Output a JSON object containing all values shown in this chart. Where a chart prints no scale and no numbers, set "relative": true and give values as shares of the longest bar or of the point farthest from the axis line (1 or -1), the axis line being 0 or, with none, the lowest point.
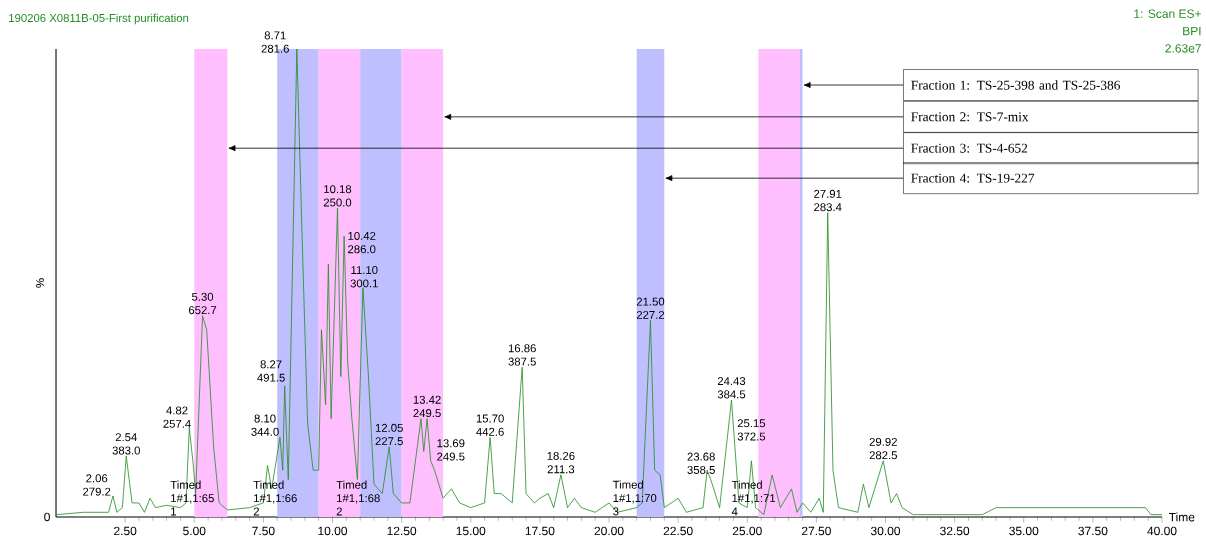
{
  "chart_data": {
    "type": "line",
    "relative": true,
    "title": "190206 X0811B-05-First purification",
    "xlabel": "Time",
    "ylabel": "%",
    "xlim": [
      0,
      40
    ],
    "xticks": [
      {
        "value": 2.5,
        "label": "2.50"
      },
      {
        "value": 5,
        "label": "5.00"
      },
      {
        "value": 7.5,
        "label": "7.50"
      },
      {
        "value": 10,
        "label": "10.00"
      },
      {
        "value": 12.5,
        "label": "12.50"
      },
      {
        "value": 15,
        "label": "15.00"
      },
      {
        "value": 17.5,
        "label": "17.50"
      },
      {
        "value": 20,
        "label": "20.00"
      },
      {
        "value": 22.5,
        "label": "22.50"
      },
      {
        "value": 25,
        "label": "25.00"
      },
      {
        "value": 27.5,
        "label": "27.50"
      },
      {
        "value": 30,
        "label": "30.00"
      },
      {
        "value": 32.5,
        "label": "32.50"
      },
      {
        "value": 35,
        "label": "35.00"
      },
      {
        "value": 37.5,
        "label": "37.50"
      },
      {
        "value": 40,
        "label": "40.00"
      }
    ],
    "x": [
      0,
      1.0,
      1.9,
      2.06,
      2.2,
      2.4,
      2.54,
      2.75,
      3.0,
      3.2,
      3.4,
      3.6,
      4.0,
      4.5,
      4.7,
      4.82,
      4.95,
      5.05,
      5.3,
      5.45,
      5.7,
      5.9,
      6.2,
      7.0,
      7.5,
      7.65,
      7.8,
      8.1,
      8.2,
      8.27,
      8.4,
      8.71,
      8.9,
      9.1,
      9.3,
      9.5,
      9.6,
      9.75,
      9.85,
      9.95,
      10.18,
      10.3,
      10.42,
      10.55,
      10.7,
      10.9,
      11.1,
      11.3,
      11.5,
      11.8,
      12.05,
      12.2,
      12.5,
      12.8,
      13.2,
      13.3,
      13.42,
      13.55,
      13.69,
      14.0,
      14.3,
      14.6,
      15.0,
      15.5,
      15.7,
      15.85,
      16.1,
      16.5,
      16.86,
      17.0,
      17.3,
      17.5,
      17.8,
      18.0,
      18.26,
      18.5,
      18.75,
      19.0,
      19.5,
      20.0,
      20.3,
      21.0,
      21.2,
      21.5,
      21.65,
      21.85,
      22.0,
      22.5,
      22.8,
      23.4,
      23.55,
      23.68,
      24.0,
      24.43,
      24.7,
      25.0,
      25.15,
      25.3,
      25.6,
      25.9,
      26.2,
      26.6,
      26.8,
      27.0,
      27.3,
      27.6,
      27.75,
      27.91,
      28.1,
      28.3,
      29.0,
      29.2,
      29.4,
      29.92,
      30.2,
      30.4,
      30.6,
      31.0,
      33.5,
      34.0,
      35.0,
      37.5,
      39.4,
      39.6,
      40.0
    ],
    "series": [
      {
        "color": "#1f8c1f",
        "values": [
          0.005,
          0.01,
          0.01,
          0.045,
          0.01,
          0.02,
          0.13,
          0.03,
          0.03,
          0.01,
          0.04,
          0.02,
          0.025,
          0.02,
          0.03,
          0.19,
          0.12,
          0.05,
          0.43,
          0.4,
          0.15,
          0.03,
          0.015,
          0.02,
          0.03,
          0.11,
          0.06,
          0.17,
          0.1,
          0.28,
          0.08,
          1.0,
          0.6,
          0.2,
          0.1,
          0.1,
          0.4,
          0.24,
          0.54,
          0.21,
          0.66,
          0.3,
          0.6,
          0.33,
          0.21,
          0.08,
          0.49,
          0.3,
          0.07,
          0.05,
          0.15,
          0.05,
          0.03,
          0.03,
          0.21,
          0.14,
          0.21,
          0.12,
          0.1,
          0.04,
          0.06,
          0.03,
          0.02,
          0.03,
          0.17,
          0.05,
          0.05,
          0.03,
          0.32,
          0.05,
          0.03,
          0.04,
          0.05,
          0.02,
          0.09,
          0.02,
          0.04,
          0.02,
          0.01,
          0.03,
          0.01,
          0.02,
          0.03,
          0.42,
          0.1,
          0.09,
          0.02,
          0.04,
          0.01,
          0.02,
          0.1,
          0.08,
          0.02,
          0.25,
          0.03,
          0.02,
          0.12,
          0.02,
          0.005,
          0.09,
          0.02,
          0.06,
          0.01,
          0.03,
          0.01,
          0.04,
          0.01,
          0.65,
          0.1,
          0.02,
          0.01,
          0.07,
          0.02,
          0.12,
          0.03,
          0.05,
          0.02,
          0.005,
          0.005,
          0.02,
          0.02,
          0.02,
          0.02,
          0.005,
          0.005
        ]
      }
    ],
    "bands": [
      {
        "axis": "x",
        "from": 5.0,
        "to": 6.2,
        "color": "#ffbfff"
      },
      {
        "axis": "x",
        "from": 8.0,
        "to": 9.5,
        "color": "#bfbfff"
      },
      {
        "axis": "x",
        "from": 9.5,
        "to": 11.0,
        "color": "#ffbfff"
      },
      {
        "axis": "x",
        "from": 11.0,
        "to": 12.5,
        "color": "#bfbfff"
      },
      {
        "axis": "x",
        "from": 12.5,
        "to": 14.0,
        "color": "#ffbfff"
      },
      {
        "axis": "x",
        "from": 21.0,
        "to": 22.0,
        "color": "#bfbfff"
      },
      {
        "axis": "x",
        "from": 25.4,
        "to": 26.9,
        "color": "#ffbfff"
      },
      {
        "axis": "x",
        "from": 26.9,
        "to": 27.0,
        "color": "#bfbfff"
      }
    ],
    "annotations": [
      "1: Scan ES+",
      "BPI",
      "2.63e7",
      "0",
      {
        "text": "2.06 279.2",
        "x": 2.06,
        "y": 0.045
      },
      {
        "text": "2.54 383.0",
        "x": 2.54,
        "y": 0.13
      },
      {
        "text": "4.82 257.4",
        "x": 4.82,
        "y": 0.19
      },
      {
        "text": "5.30 652.7",
        "x": 5.3,
        "y": 0.43
      },
      {
        "text": "8.10 344.0",
        "x": 8.1,
        "y": 0.17
      },
      {
        "text": "8.27 491.5",
        "x": 8.27,
        "y": 0.28
      },
      {
        "text": "8.71 281.6",
        "x": 8.71,
        "y": 1.0
      },
      {
        "text": "10.18 250.0",
        "x": 10.18,
        "y": 0.66
      },
      {
        "text": "10.42 286.0",
        "x": 10.42,
        "y": 0.6
      },
      {
        "text": "11.10 300.1",
        "x": 11.1,
        "y": 0.49
      },
      {
        "text": "12.05 227.5",
        "x": 12.05,
        "y": 0.15
      },
      {
        "text": "13.42 249.5",
        "x": 13.42,
        "y": 0.21
      },
      {
        "text": "13.69 249.5",
        "x": 13.69,
        "y": 0.1
      },
      {
        "text": "15.70 442.6",
        "x": 15.7,
        "y": 0.17
      },
      {
        "text": "16.86 387.5",
        "x": 16.86,
        "y": 0.32
      },
      {
        "text": "18.26 211.3",
        "x": 18.26,
        "y": 0.09
      },
      {
        "text": "21.50 227.2",
        "x": 21.5,
        "y": 0.42
      },
      {
        "text": "23.68 358.5",
        "x": 23.68,
        "y": 0.08
      },
      {
        "text": "24.43 384.5",
        "x": 24.43,
        "y": 0.25
      },
      {
        "text": "25.15 372.5",
        "x": 25.15,
        "y": 0.12
      },
      {
        "text": "27.91 283.4",
        "x": 27.91,
        "y": 0.65
      },
      {
        "text": "29.92 282.5",
        "x": 29.92,
        "y": 0.12
      },
      {
        "text": "Timed 1#1,1:65 1",
        "x": 5.0,
        "y": 0
      },
      {
        "text": "Timed 1#1,1:66 2",
        "x": 8.0,
        "y": 0
      },
      {
        "text": "Timed 1#1,1:68 2",
        "x": 11.0,
        "y": 0
      },
      {
        "text": "Timed 1#1,1:70 3",
        "x": 21.0,
        "y": 0
      },
      {
        "text": "Timed 1#1,1:71 4",
        "x": 25.3,
        "y": 0
      },
      {
        "text": "Fraction 1: TS-25-398 and TS-25-386",
        "x": 27.0,
        "y": 0.923
      },
      {
        "text": "Fraction 2: TS-7-mix",
        "x": 14.0,
        "y": 0.855
      },
      {
        "text": "Fraction 3: TS-4-652",
        "x": 6.2,
        "y": 0.788
      },
      {
        "text": "Fraction 4: TS-19-227",
        "x": 22.0,
        "y": 0.724
      }
    ]
  }
}
